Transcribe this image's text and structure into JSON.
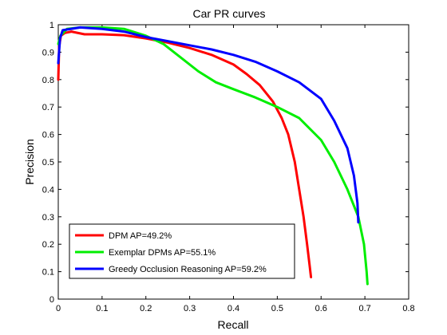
{
  "chart_data": {
    "type": "line",
    "title": "Car PR curves",
    "xlabel": "Recall",
    "ylabel": "Precision",
    "xlim": [
      0,
      0.8
    ],
    "ylim": [
      0,
      1
    ],
    "xticks": [
      "0",
      "0.1",
      "0.2",
      "0.3",
      "0.4",
      "0.5",
      "0.6",
      "0.7",
      "0.8"
    ],
    "yticks": [
      "0",
      "0.1",
      "0.2",
      "0.3",
      "0.4",
      "0.5",
      "0.6",
      "0.7",
      "0.8",
      "0.9",
      "1"
    ],
    "grid": false,
    "legend_position": "bottom-left",
    "series": [
      {
        "name": "DPM AP=49.2%",
        "color": "#ff0000",
        "points": [
          [
            0.0,
            0.8
          ],
          [
            0.002,
            0.92
          ],
          [
            0.006,
            0.96
          ],
          [
            0.015,
            0.97
          ],
          [
            0.03,
            0.975
          ],
          [
            0.06,
            0.965
          ],
          [
            0.1,
            0.965
          ],
          [
            0.15,
            0.962
          ],
          [
            0.2,
            0.95
          ],
          [
            0.25,
            0.935
          ],
          [
            0.3,
            0.915
          ],
          [
            0.35,
            0.89
          ],
          [
            0.4,
            0.855
          ],
          [
            0.43,
            0.82
          ],
          [
            0.46,
            0.78
          ],
          [
            0.49,
            0.72
          ],
          [
            0.51,
            0.66
          ],
          [
            0.525,
            0.6
          ],
          [
            0.54,
            0.5
          ],
          [
            0.55,
            0.4
          ],
          [
            0.56,
            0.3
          ],
          [
            0.568,
            0.2
          ],
          [
            0.574,
            0.12
          ],
          [
            0.577,
            0.08
          ]
        ]
      },
      {
        "name": "Exemplar DPMs AP=55.1%",
        "color": "#00ee00",
        "points": [
          [
            0.0,
            0.93
          ],
          [
            0.005,
            0.96
          ],
          [
            0.02,
            0.985
          ],
          [
            0.05,
            0.99
          ],
          [
            0.1,
            0.99
          ],
          [
            0.15,
            0.985
          ],
          [
            0.2,
            0.96
          ],
          [
            0.24,
            0.93
          ],
          [
            0.28,
            0.88
          ],
          [
            0.32,
            0.83
          ],
          [
            0.36,
            0.79
          ],
          [
            0.4,
            0.765
          ],
          [
            0.45,
            0.735
          ],
          [
            0.5,
            0.7
          ],
          [
            0.55,
            0.66
          ],
          [
            0.6,
            0.58
          ],
          [
            0.63,
            0.5
          ],
          [
            0.66,
            0.4
          ],
          [
            0.685,
            0.3
          ],
          [
            0.698,
            0.2
          ],
          [
            0.704,
            0.1
          ],
          [
            0.706,
            0.055
          ]
        ]
      },
      {
        "name": "Greedy Occlusion Reasoning AP=59.2%",
        "color": "#0000ff",
        "points": [
          [
            0.0,
            0.86
          ],
          [
            0.004,
            0.95
          ],
          [
            0.01,
            0.98
          ],
          [
            0.05,
            0.99
          ],
          [
            0.1,
            0.985
          ],
          [
            0.15,
            0.975
          ],
          [
            0.2,
            0.955
          ],
          [
            0.25,
            0.94
          ],
          [
            0.3,
            0.925
          ],
          [
            0.35,
            0.91
          ],
          [
            0.4,
            0.89
          ],
          [
            0.45,
            0.865
          ],
          [
            0.5,
            0.83
          ],
          [
            0.55,
            0.79
          ],
          [
            0.6,
            0.73
          ],
          [
            0.63,
            0.65
          ],
          [
            0.66,
            0.55
          ],
          [
            0.675,
            0.45
          ],
          [
            0.683,
            0.35
          ],
          [
            0.685,
            0.28
          ]
        ]
      }
    ]
  }
}
